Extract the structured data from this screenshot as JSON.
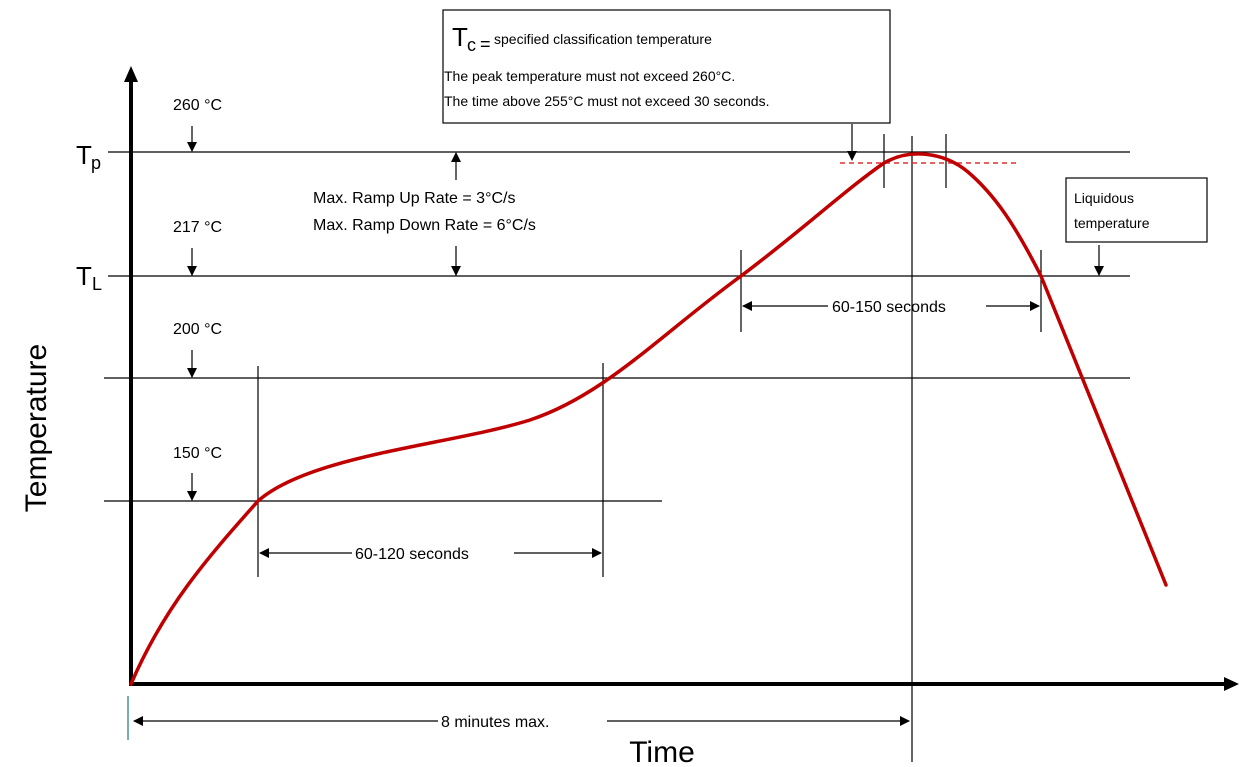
{
  "axes": {
    "y_title": "Temperature",
    "x_title": "Time"
  },
  "levels": {
    "tp_symbol": "T",
    "tp_subscript": "p",
    "tl_symbol": "T",
    "tl_subscript": "L",
    "t260": "260 °C",
    "t217": "217 °C",
    "t200": "200 °C",
    "t150": "150 °C"
  },
  "ramp": {
    "up": "Max. Ramp Up Rate = 3°C/s",
    "down": "Max. Ramp Down Rate = 6°C/s"
  },
  "durations": {
    "soak": "60-120 seconds",
    "liquidus": "60-150 seconds",
    "total": "8 minutes max."
  },
  "tc_box": {
    "symbol": "T",
    "subscript": "c",
    "equals": "=",
    "definition": "specified classification temperature",
    "line1": "The peak temperature must not exceed 260°C.",
    "line2": "The time above 255°C must not exceed 30 seconds."
  },
  "liquidous_box": {
    "line1": "Liquidous",
    "line2": "temperature"
  },
  "colors": {
    "profile": "#c00000",
    "tc_dash": "#e03030",
    "line": "#000000"
  }
}
